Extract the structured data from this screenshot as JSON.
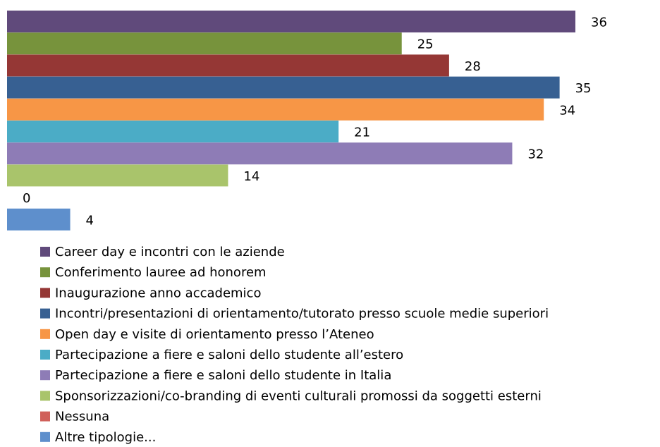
{
  "chart_data": {
    "type": "bar",
    "orientation": "horizontal",
    "series": [
      {
        "name": "Career day e incontri con le aziende",
        "color": "#604a7b",
        "values": [
          36
        ]
      },
      {
        "name": "Conferimento lauree ad honorem",
        "color": "#77933c",
        "values": [
          25
        ]
      },
      {
        "name": "Inaugurazione anno accademico",
        "color": "#953735",
        "values": [
          28
        ]
      },
      {
        "name": "Incontri/presentazioni di orientamento/tutorato presso scuole medie superiori",
        "color": "#376092",
        "values": [
          35
        ]
      },
      {
        "name": "Open day e visite di orientamento presso l’Ateneo",
        "color": "#f79646",
        "values": [
          34
        ]
      },
      {
        "name": "Partecipazione a fiere e saloni dello studente all’estero",
        "color": "#4bacc6",
        "values": [
          21
        ]
      },
      {
        "name": "Partecipazione a fiere e saloni dello studente in Italia",
        "color": "#8e7cb6",
        "values": [
          32
        ]
      },
      {
        "name": "Sponsorizzazioni/co-branding di eventi culturali promossi da soggetti esterni",
        "color": "#a9c46b",
        "values": [
          14
        ]
      },
      {
        "name": "Nessuna",
        "color": "#d0605a",
        "values": [
          0
        ]
      },
      {
        "name": "Altre tipologie...",
        "color": "#5e8fcc",
        "values": [
          4
        ]
      }
    ],
    "legend": "bottom"
  }
}
